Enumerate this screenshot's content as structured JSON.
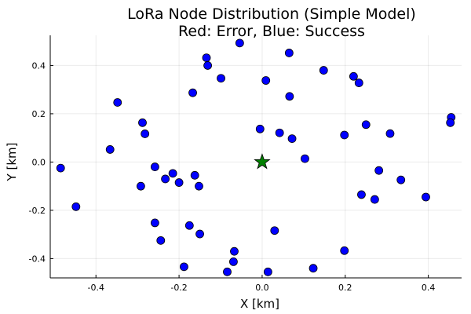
{
  "chart_data": {
    "type": "scatter",
    "title_line1": "LoRa Node Distribution (Simple Model)",
    "title_line2": "Red: Error, Blue: Success",
    "xlabel": "X [km]",
    "ylabel": "Y [km]",
    "xlim": [
      -0.51,
      0.48
    ],
    "ylim": [
      -0.48,
      0.525
    ],
    "xticks": [
      -0.4,
      -0.2,
      0.0,
      0.2,
      0.4
    ],
    "xtick_labels": [
      "-0.4",
      "-0.2",
      "0.0",
      "0.2",
      "0.4"
    ],
    "yticks": [
      -0.4,
      -0.2,
      0.0,
      0.2,
      0.4
    ],
    "ytick_labels": [
      "-0.4",
      "-0.2",
      "0.0",
      "0.2",
      "0.4"
    ],
    "grid": true,
    "legend": false,
    "gateway": {
      "x": 0.0,
      "y": 0.0,
      "marker": "star",
      "color": "#008000"
    },
    "series": [
      {
        "marker": "circle",
        "color": "#0000ff",
        "points": [
          [
            -0.054,
            0.493
          ],
          [
            0.065,
            0.452
          ],
          [
            -0.134,
            0.432
          ],
          [
            -0.131,
            0.4
          ],
          [
            0.148,
            0.38
          ],
          [
            0.22,
            0.355
          ],
          [
            0.233,
            0.328
          ],
          [
            -0.099,
            0.347
          ],
          [
            0.009,
            0.338
          ],
          [
            -0.167,
            0.287
          ],
          [
            0.066,
            0.272
          ],
          [
            -0.348,
            0.247
          ],
          [
            0.455,
            0.185
          ],
          [
            0.453,
            0.163
          ],
          [
            -0.288,
            0.163
          ],
          [
            -0.282,
            0.117
          ],
          [
            0.25,
            0.155
          ],
          [
            -0.005,
            0.137
          ],
          [
            0.042,
            0.121
          ],
          [
            0.072,
            0.097
          ],
          [
            0.198,
            0.112
          ],
          [
            0.308,
            0.118
          ],
          [
            -0.366,
            0.052
          ],
          [
            0.103,
            0.014
          ],
          [
            -0.485,
            -0.025
          ],
          [
            -0.258,
            -0.02
          ],
          [
            0.281,
            -0.035
          ],
          [
            -0.215,
            -0.047
          ],
          [
            -0.162,
            -0.055
          ],
          [
            -0.2,
            -0.085
          ],
          [
            -0.233,
            -0.07
          ],
          [
            -0.152,
            -0.1
          ],
          [
            -0.292,
            -0.1
          ],
          [
            0.334,
            -0.074
          ],
          [
            0.239,
            -0.135
          ],
          [
            0.271,
            -0.155
          ],
          [
            0.394,
            -0.145
          ],
          [
            -0.448,
            -0.185
          ],
          [
            -0.258,
            -0.252
          ],
          [
            -0.175,
            -0.263
          ],
          [
            0.03,
            -0.284
          ],
          [
            -0.15,
            -0.298
          ],
          [
            -0.244,
            -0.325
          ],
          [
            -0.067,
            -0.37
          ],
          [
            0.198,
            -0.367
          ],
          [
            -0.069,
            -0.413
          ],
          [
            -0.188,
            -0.434
          ],
          [
            0.123,
            -0.44
          ],
          [
            -0.084,
            -0.455
          ],
          [
            0.014,
            -0.455
          ]
        ]
      }
    ]
  }
}
